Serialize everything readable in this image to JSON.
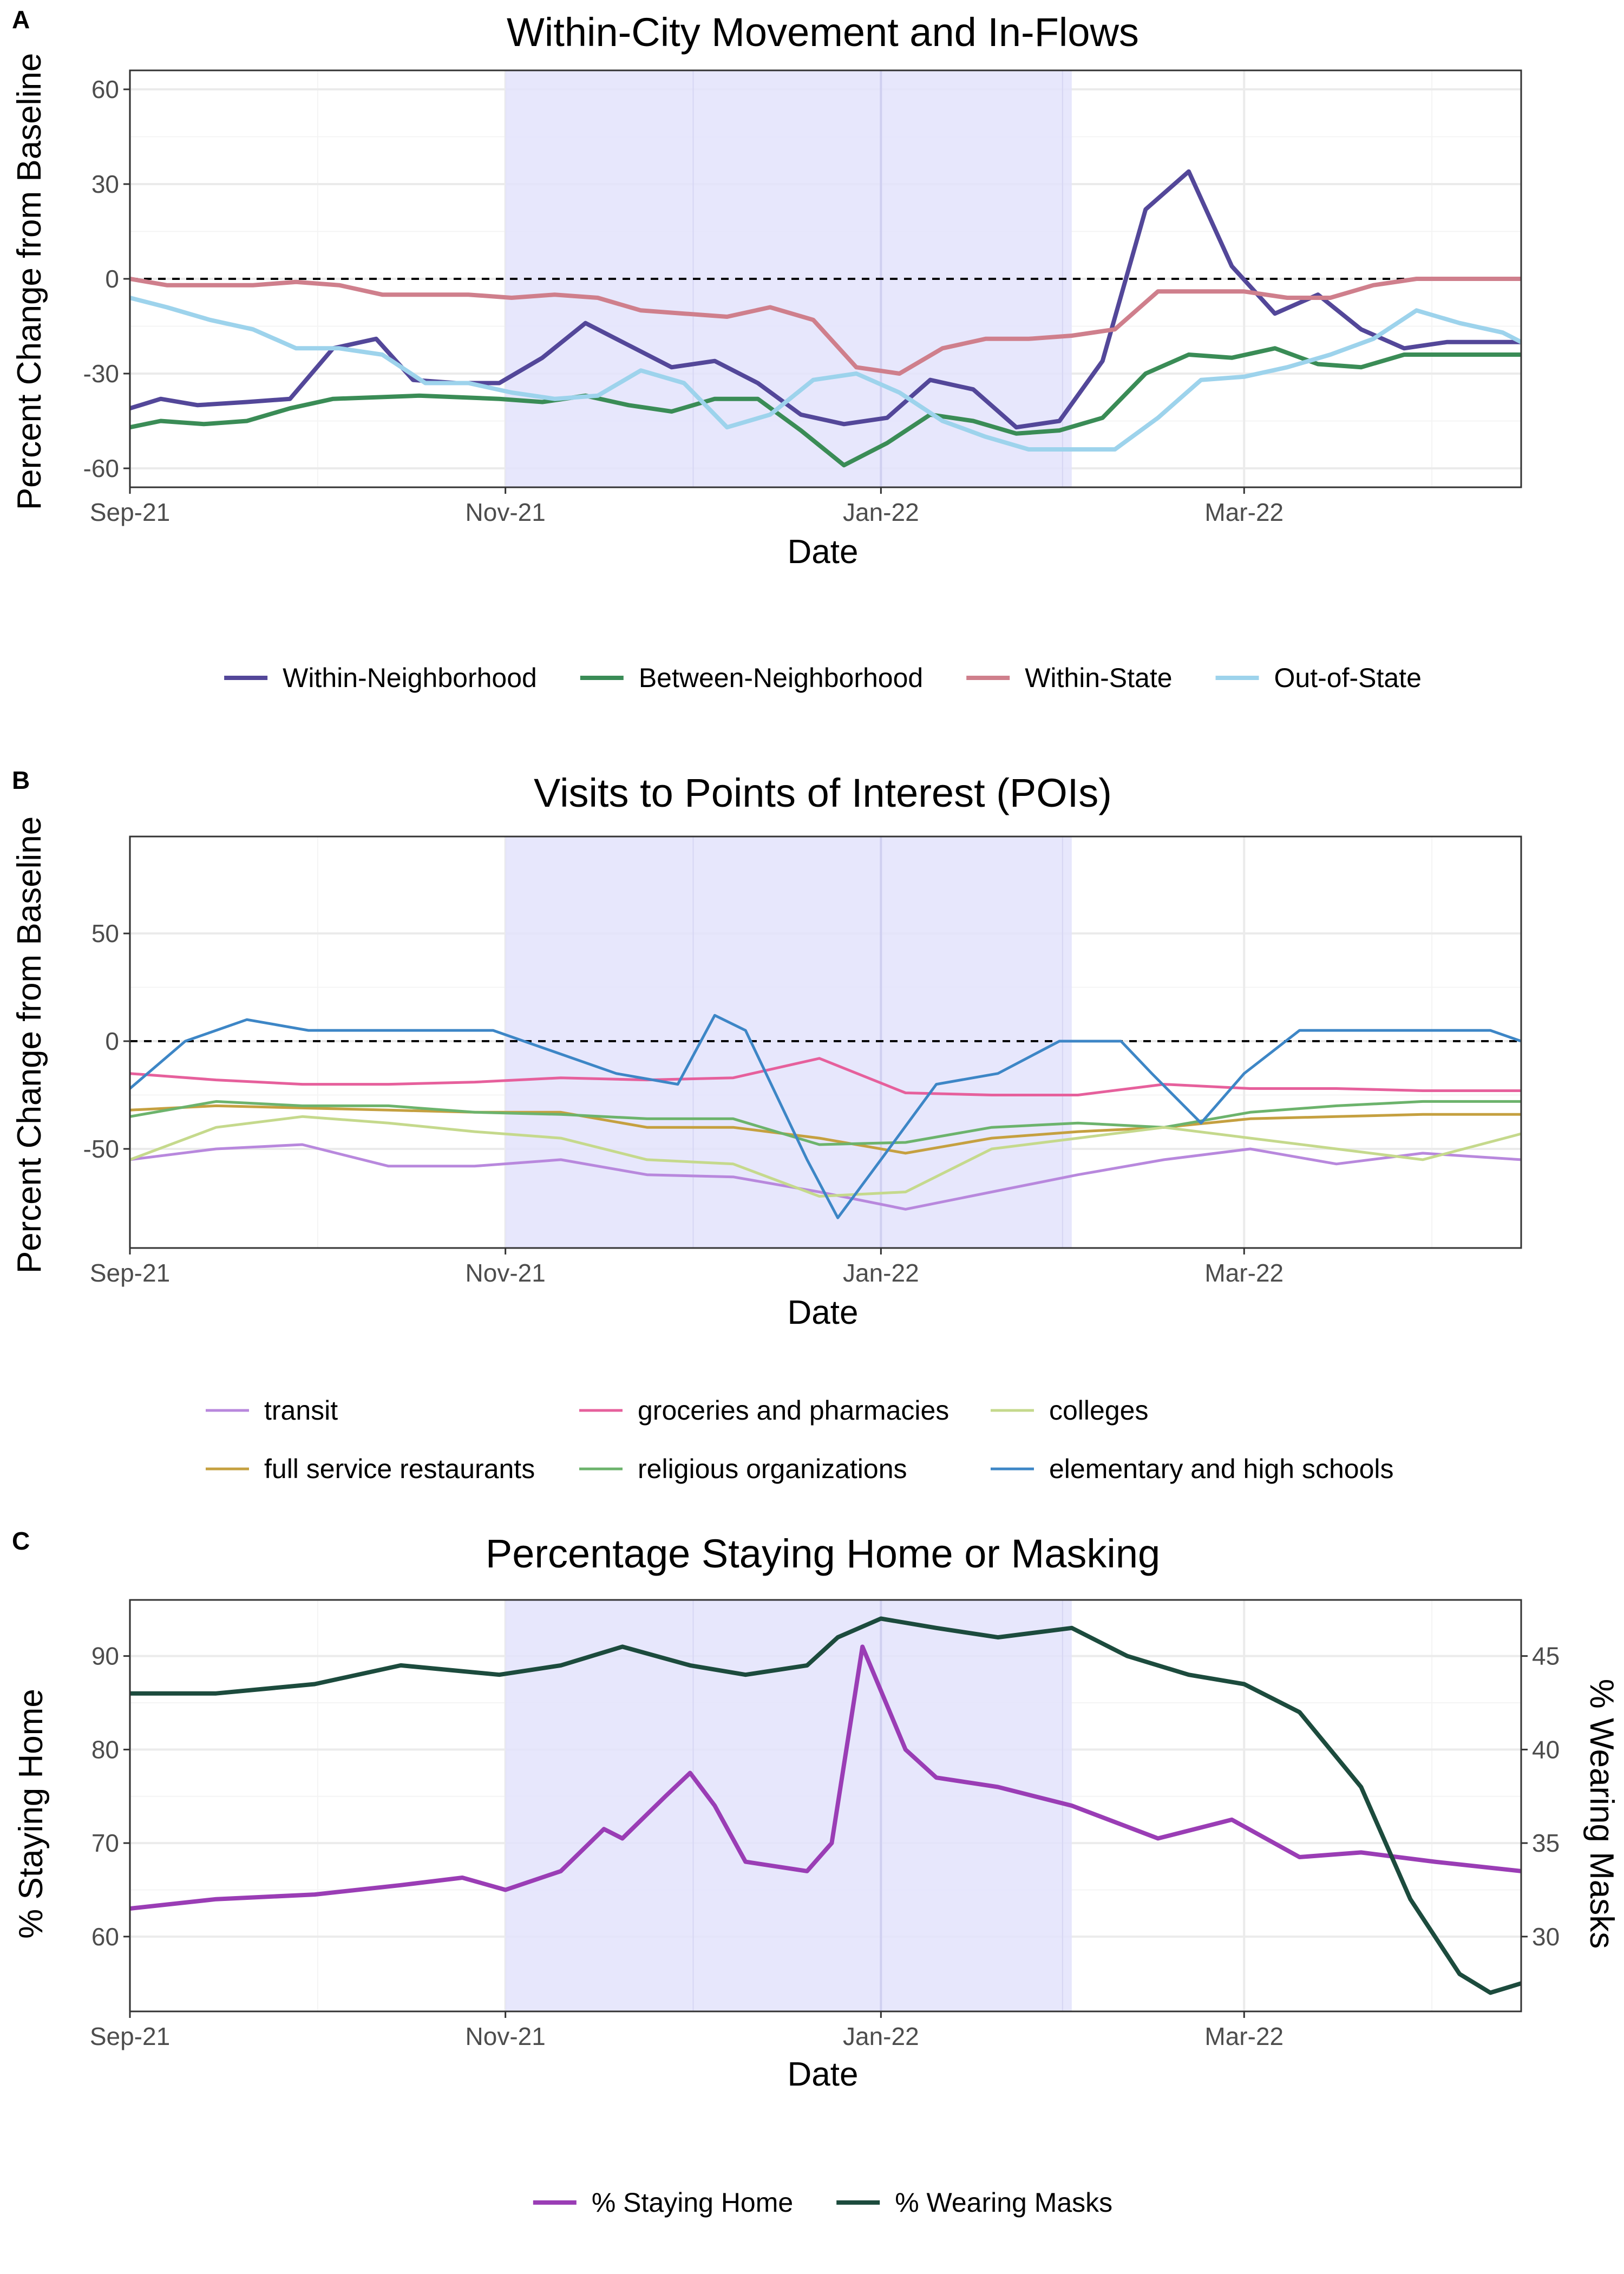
{
  "x_domain": [
    "2021-09-01",
    "2022-04-15"
  ],
  "shaded_period": {
    "start": "2021-11-01",
    "end": "2022-02-01",
    "color": "#e3e3fc"
  },
  "chart_data": [
    {
      "letter": "A",
      "type": "line",
      "title": "Within-City Movement and In-Flows",
      "xlabel": "Date",
      "ylabel": "Percent Change from Baseline",
      "ylim": [
        -66,
        66
      ],
      "yticks": [
        -60,
        -30,
        0,
        30,
        60
      ],
      "xtick_labels": [
        "Sep-21",
        "Nov-21",
        "Jan-22",
        "Mar-22"
      ],
      "xtick_dates": [
        "2021-09-01",
        "2021-11-01",
        "2022-01-01",
        "2022-03-01"
      ],
      "grid": true,
      "reference_line": 0,
      "legend_position": "bottom",
      "series": [
        {
          "name": "Within-Neighborhood",
          "color": "#534799",
          "x": [
            "2021-09-01",
            "2021-09-06",
            "2021-09-12",
            "2021-09-20",
            "2021-09-27",
            "2021-10-04",
            "2021-10-11",
            "2021-10-17",
            "2021-10-24",
            "2021-10-31",
            "2021-11-07",
            "2021-11-14",
            "2021-11-21",
            "2021-11-28",
            "2021-12-05",
            "2021-12-12",
            "2021-12-19",
            "2021-12-26",
            "2022-01-02",
            "2022-01-09",
            "2022-01-16",
            "2022-01-23",
            "2022-01-30",
            "2022-02-06",
            "2022-02-13",
            "2022-02-20",
            "2022-02-27",
            "2022-03-06",
            "2022-03-13",
            "2022-03-20",
            "2022-03-27",
            "2022-04-03",
            "2022-04-10",
            "2022-04-15"
          ],
          "values": [
            -41,
            -38,
            -40,
            -39,
            -38,
            -22,
            -19,
            -32,
            -33,
            -33,
            -25,
            -14,
            -21,
            -28,
            -26,
            -33,
            -43,
            -46,
            -44,
            -32,
            -35,
            -47,
            -45,
            -26,
            22,
            34,
            4,
            -11,
            -5,
            -16,
            -22,
            -20,
            -20,
            -20
          ]
        },
        {
          "name": "Between-Neighborhood",
          "color": "#3a8c56",
          "x": [
            "2021-09-01",
            "2021-09-06",
            "2021-09-13",
            "2021-09-20",
            "2021-09-27",
            "2021-10-04",
            "2021-10-18",
            "2021-10-31",
            "2021-11-07",
            "2021-11-14",
            "2021-11-21",
            "2021-11-28",
            "2021-12-05",
            "2021-12-12",
            "2021-12-19",
            "2021-12-26",
            "2022-01-02",
            "2022-01-09",
            "2022-01-16",
            "2022-01-23",
            "2022-01-30",
            "2022-02-06",
            "2022-02-13",
            "2022-02-20",
            "2022-02-27",
            "2022-03-06",
            "2022-03-13",
            "2022-03-20",
            "2022-03-27",
            "2022-04-03",
            "2022-04-10",
            "2022-04-15"
          ],
          "values": [
            -47,
            -45,
            -46,
            -45,
            -41,
            -38,
            -37,
            -38,
            -39,
            -37,
            -40,
            -42,
            -38,
            -38,
            -48,
            -59,
            -52,
            -43,
            -45,
            -49,
            -48,
            -44,
            -30,
            -24,
            -25,
            -22,
            -27,
            -28,
            -24,
            -24,
            -24,
            -24
          ]
        },
        {
          "name": "Within-State",
          "color": "#cf7f8c",
          "x": [
            "2021-09-01",
            "2021-09-07",
            "2021-09-14",
            "2021-09-21",
            "2021-09-28",
            "2021-10-05",
            "2021-10-12",
            "2021-10-19",
            "2021-10-26",
            "2021-11-02",
            "2021-11-09",
            "2021-11-16",
            "2021-11-23",
            "2021-11-30",
            "2021-12-07",
            "2021-12-14",
            "2021-12-21",
            "2021-12-28",
            "2022-01-04",
            "2022-01-11",
            "2022-01-18",
            "2022-01-25",
            "2022-02-01",
            "2022-02-08",
            "2022-02-15",
            "2022-02-22",
            "2022-03-01",
            "2022-03-08",
            "2022-03-15",
            "2022-03-22",
            "2022-03-29",
            "2022-04-05",
            "2022-04-12",
            "2022-04-15"
          ],
          "values": [
            0,
            -2,
            -2,
            -2,
            -1,
            -2,
            -5,
            -5,
            -5,
            -6,
            -5,
            -6,
            -10,
            -11,
            -12,
            -9,
            -13,
            -28,
            -30,
            -22,
            -19,
            -19,
            -18,
            -16,
            -4,
            -4,
            -4,
            -6,
            -6,
            -2,
            0,
            0,
            0,
            0
          ]
        },
        {
          "name": "Out-of-State",
          "color": "#9dd3ec",
          "x": [
            "2021-09-01",
            "2021-09-07",
            "2021-09-14",
            "2021-09-21",
            "2021-09-28",
            "2021-10-05",
            "2021-10-12",
            "2021-10-19",
            "2021-10-26",
            "2021-11-02",
            "2021-11-09",
            "2021-11-16",
            "2021-11-23",
            "2021-11-30",
            "2021-12-07",
            "2021-12-14",
            "2021-12-21",
            "2021-12-28",
            "2022-01-04",
            "2022-01-11",
            "2022-01-18",
            "2022-01-25",
            "2022-02-01",
            "2022-02-08",
            "2022-02-15",
            "2022-02-22",
            "2022-03-01",
            "2022-03-08",
            "2022-03-15",
            "2022-03-22",
            "2022-03-29",
            "2022-04-05",
            "2022-04-12",
            "2022-04-15"
          ],
          "values": [
            -6,
            -9,
            -13,
            -16,
            -22,
            -22,
            -24,
            -33,
            -33,
            -36,
            -38,
            -37,
            -29,
            -33,
            -47,
            -43,
            -32,
            -30,
            -36,
            -45,
            -50,
            -54,
            -54,
            -54,
            -44,
            -32,
            -31,
            -28,
            -24,
            -19,
            -10,
            -14,
            -17,
            -20
          ]
        }
      ]
    },
    {
      "letter": "B",
      "type": "line",
      "title": "Visits to Points of Interest (POIs)",
      "xlabel": "Date",
      "ylabel": "Percent Change from Baseline",
      "ylim": [
        -96,
        95
      ],
      "yticks": [
        -50,
        0,
        50
      ],
      "xtick_labels": [
        "Sep-21",
        "Nov-21",
        "Jan-22",
        "Mar-22"
      ],
      "xtick_dates": [
        "2021-09-01",
        "2021-11-01",
        "2022-01-01",
        "2022-03-01"
      ],
      "grid": true,
      "reference_line": 0,
      "legend_position": "bottom",
      "series": [
        {
          "name": "transit",
          "color": "#b888dd",
          "x": [
            "2021-09-01",
            "2021-09-15",
            "2021-09-29",
            "2021-10-13",
            "2021-10-27",
            "2021-11-10",
            "2021-11-24",
            "2021-12-08",
            "2021-12-22",
            "2022-01-05",
            "2022-01-19",
            "2022-02-02",
            "2022-02-16",
            "2022-03-02",
            "2022-03-16",
            "2022-03-30",
            "2022-04-15"
          ],
          "values": [
            -55,
            -50,
            -48,
            -58,
            -58,
            -55,
            -62,
            -63,
            -70,
            -78,
            -70,
            -62,
            -55,
            -50,
            -57,
            -52,
            -55
          ]
        },
        {
          "name": "full service restaurants",
          "color": "#c5a040",
          "x": [
            "2021-09-01",
            "2021-09-15",
            "2021-09-29",
            "2021-10-13",
            "2021-10-27",
            "2021-11-10",
            "2021-11-24",
            "2021-12-08",
            "2021-12-22",
            "2022-01-05",
            "2022-01-19",
            "2022-02-02",
            "2022-02-16",
            "2022-03-02",
            "2022-03-16",
            "2022-03-30",
            "2022-04-15"
          ],
          "values": [
            -32,
            -30,
            -31,
            -32,
            -33,
            -33,
            -40,
            -40,
            -45,
            -52,
            -45,
            -42,
            -40,
            -36,
            -35,
            -34,
            -34
          ]
        },
        {
          "name": "religious organizations",
          "color": "#6cb36c",
          "x": [
            "2021-09-01",
            "2021-09-15",
            "2021-09-29",
            "2021-10-13",
            "2021-10-27",
            "2021-11-10",
            "2021-11-24",
            "2021-12-08",
            "2021-12-22",
            "2022-01-05",
            "2022-01-19",
            "2022-02-02",
            "2022-02-16",
            "2022-03-02",
            "2022-03-16",
            "2022-03-30",
            "2022-04-15"
          ],
          "values": [
            -35,
            -28,
            -30,
            -30,
            -33,
            -34,
            -36,
            -36,
            -48,
            -47,
            -40,
            -38,
            -40,
            -33,
            -30,
            -28,
            -28
          ]
        },
        {
          "name": "groceries and pharmacies",
          "color": "#e6609c",
          "x": [
            "2021-09-01",
            "2021-09-15",
            "2021-09-29",
            "2021-10-13",
            "2021-10-27",
            "2021-11-10",
            "2021-11-24",
            "2021-12-08",
            "2021-12-22",
            "2022-01-05",
            "2022-01-19",
            "2022-02-02",
            "2022-02-16",
            "2022-03-02",
            "2022-03-16",
            "2022-03-30",
            "2022-04-15"
          ],
          "values": [
            -15,
            -18,
            -20,
            -20,
            -19,
            -17,
            -18,
            -17,
            -8,
            -24,
            -25,
            -25,
            -20,
            -22,
            -22,
            -23,
            -23
          ]
        },
        {
          "name": "colleges",
          "color": "#c5d98c",
          "x": [
            "2021-09-01",
            "2021-09-15",
            "2021-09-29",
            "2021-10-13",
            "2021-10-27",
            "2021-11-10",
            "2021-11-24",
            "2021-12-08",
            "2021-12-22",
            "2022-01-05",
            "2022-01-19",
            "2022-02-02",
            "2022-02-16",
            "2022-03-02",
            "2022-03-16",
            "2022-03-30",
            "2022-04-15"
          ],
          "values": [
            -55,
            -40,
            -35,
            -38,
            -42,
            -45,
            -55,
            -57,
            -72,
            -70,
            -50,
            -45,
            -40,
            -45,
            -50,
            -55,
            -43
          ]
        },
        {
          "name": "elementary and high schools",
          "color": "#3d86c6",
          "x": [
            "2021-09-01",
            "2021-09-10",
            "2021-09-20",
            "2021-09-30",
            "2021-10-10",
            "2021-10-20",
            "2021-10-30",
            "2021-11-09",
            "2021-11-19",
            "2021-11-29",
            "2021-12-05",
            "2021-12-10",
            "2021-12-20",
            "2021-12-25",
            "2022-01-01",
            "2022-01-10",
            "2022-01-20",
            "2022-01-30",
            "2022-02-09",
            "2022-02-14",
            "2022-02-22",
            "2022-03-01",
            "2022-03-10",
            "2022-03-20",
            "2022-03-30",
            "2022-04-10",
            "2022-04-15"
          ],
          "values": [
            -22,
            0,
            10,
            5,
            5,
            5,
            5,
            -5,
            -15,
            -20,
            12,
            5,
            -55,
            -82,
            -55,
            -20,
            -15,
            0,
            0,
            -15,
            -38,
            -15,
            5,
            5,
            5,
            5,
            0
          ]
        }
      ]
    },
    {
      "letter": "C",
      "type": "line",
      "title": "Percentage Staying Home or Masking",
      "xlabel": "Date",
      "ylabel": "% Staying Home",
      "y2label": "% Wearing Masks",
      "ylim": [
        52,
        96
      ],
      "yticks": [
        60,
        70,
        80,
        90
      ],
      "y2lim": [
        26,
        48
      ],
      "y2ticks": [
        30,
        35,
        40,
        45
      ],
      "xtick_labels": [
        "Sep-21",
        "Nov-21",
        "Jan-22",
        "Mar-22"
      ],
      "xtick_dates": [
        "2021-09-01",
        "2021-11-01",
        "2022-01-01",
        "2022-03-01"
      ],
      "grid": true,
      "legend_position": "bottom",
      "series": [
        {
          "name": "% Staying Home",
          "axis": "left",
          "color": "#9a3db5",
          "x": [
            "2021-09-01",
            "2021-09-15",
            "2021-10-01",
            "2021-10-15",
            "2021-10-25",
            "2021-11-01",
            "2021-11-10",
            "2021-11-17",
            "2021-11-20",
            "2021-11-27",
            "2021-12-01",
            "2021-12-05",
            "2021-12-10",
            "2021-12-20",
            "2021-12-24",
            "2021-12-29",
            "2022-01-05",
            "2022-01-10",
            "2022-01-20",
            "2022-02-01",
            "2022-02-15",
            "2022-02-27",
            "2022-03-10",
            "2022-03-20",
            "2022-04-01",
            "2022-04-15"
          ],
          "values": [
            63,
            64,
            64.5,
            65.5,
            66.3,
            65,
            67,
            71.5,
            70.5,
            75,
            77.5,
            74,
            68,
            67,
            70,
            91,
            80,
            77,
            76,
            74,
            70.5,
            72.5,
            68.5,
            69,
            68,
            67
          ]
        },
        {
          "name": "% Wearing Masks",
          "axis": "right",
          "color": "#1c4b3d",
          "x": [
            "2021-09-01",
            "2021-09-15",
            "2021-10-01",
            "2021-10-15",
            "2021-10-31",
            "2021-11-10",
            "2021-11-20",
            "2021-12-01",
            "2021-12-10",
            "2021-12-20",
            "2021-12-25",
            "2022-01-01",
            "2022-01-10",
            "2022-01-20",
            "2022-02-01",
            "2022-02-10",
            "2022-02-20",
            "2022-03-01",
            "2022-03-10",
            "2022-03-20",
            "2022-03-28",
            "2022-04-05",
            "2022-04-10",
            "2022-04-15"
          ],
          "values": [
            43,
            43,
            43.5,
            44.5,
            44,
            44.5,
            45.5,
            44.5,
            44,
            44.5,
            46,
            47,
            46.5,
            46,
            46.5,
            45,
            44,
            43.5,
            42,
            38,
            32,
            28,
            27,
            27.5
          ]
        }
      ]
    }
  ]
}
